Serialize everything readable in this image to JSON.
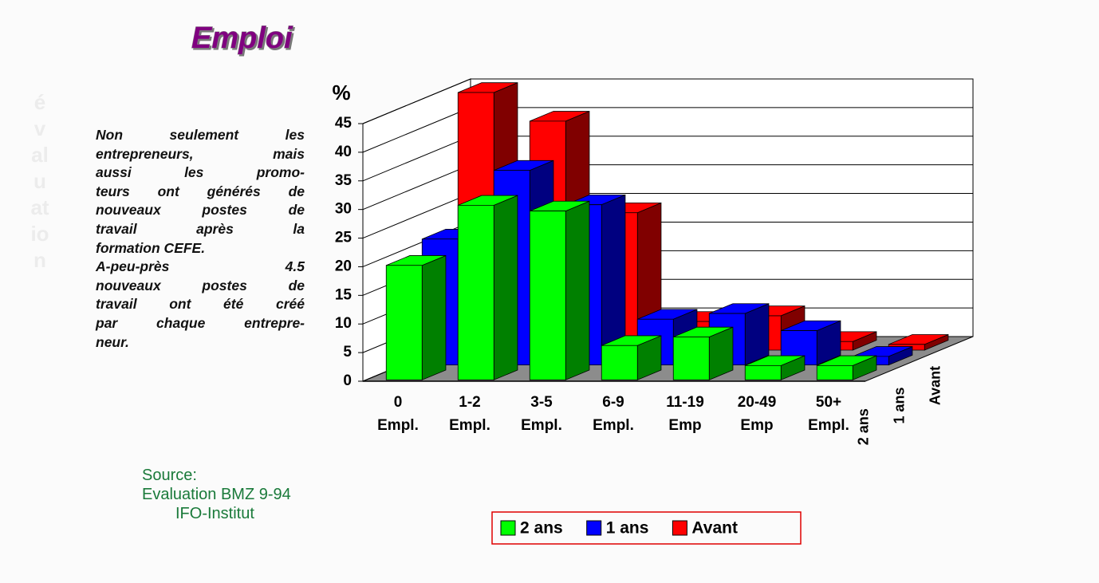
{
  "sidebar": "évaluation",
  "paragraph": [
    "Non seulement les",
    "entrepreneurs, mais",
    "aussi les promo-",
    "teurs ont générés de",
    "nouveaux postes de",
    "travail après la",
    "formation CEFE.",
    "A-peu-près 4.5",
    "nouveaux postes de",
    "travail ont été créé",
    "par chaque entrepre-",
    "neur."
  ],
  "source": [
    "Source:",
    "Evaluation BMZ 9-94",
    "IFO-Institut"
  ],
  "chart_data": {
    "type": "bar3d",
    "title": "Emploi",
    "y_label": "%",
    "categories": [
      [
        "0",
        "Empl."
      ],
      [
        "1-2",
        "Empl."
      ],
      [
        "3-5",
        "Empl."
      ],
      [
        "6-9",
        "Empl."
      ],
      [
        "11-19",
        "Emp"
      ],
      [
        "20-49",
        "Emp"
      ],
      [
        "50+",
        "Empl."
      ]
    ],
    "series": [
      {
        "name": "2 ans",
        "color": "#00ff00",
        "values": [
          20,
          30.5,
          29.5,
          6,
          7.5,
          2.5,
          2.5
        ]
      },
      {
        "name": "1 ans",
        "color": "#0000ff",
        "values": [
          22,
          34,
          28,
          8,
          9,
          6,
          1.5
        ]
      },
      {
        "name": "Avant",
        "color": "#ff0000",
        "values": [
          45,
          40,
          24,
          5,
          6,
          1.5,
          1
        ]
      }
    ],
    "ylim": [
      0,
      45
    ],
    "yticks": [
      0,
      5,
      10,
      15,
      20,
      25,
      30,
      35,
      40,
      45
    ],
    "grid": true,
    "legend": "bottom"
  }
}
